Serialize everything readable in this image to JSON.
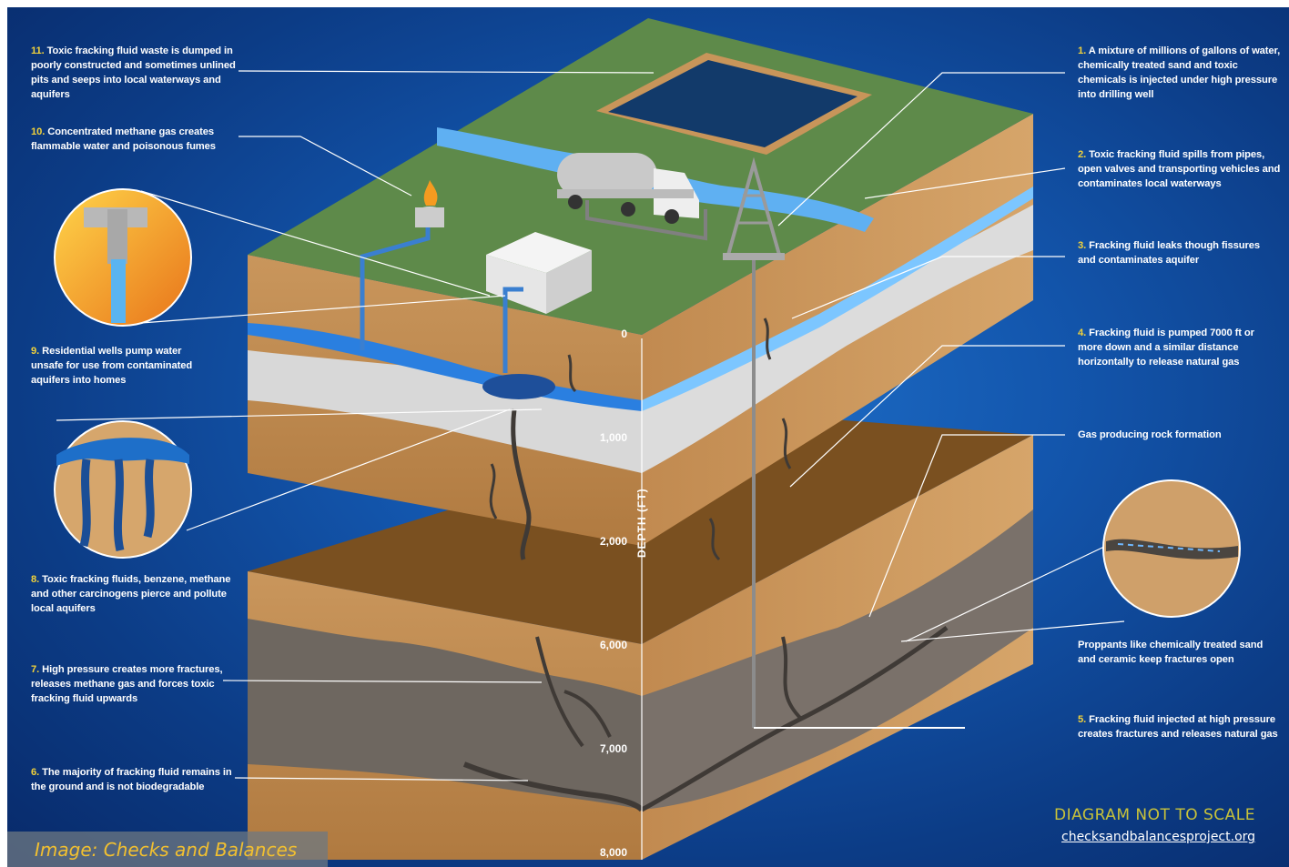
{
  "labels": {
    "l11": {
      "num": "11.",
      "text": "Toxic fracking fluid waste is dumped in poorly constructed and sometimes unlined pits and seeps into local waterways and aquifers"
    },
    "l10": {
      "num": "10.",
      "text": "Concentrated methane gas creates flammable water and poisonous fumes"
    },
    "l9": {
      "num": "9.",
      "text": "Residential wells pump water unsafe for use from contaminated aquifers into homes"
    },
    "l8": {
      "num": "8.",
      "text": "Toxic fracking fluids, benzene, methane and other carcinogens pierce and pollute local aquifers"
    },
    "l7": {
      "num": "7.",
      "text": "High pressure creates more fractures, releases methane gas and forces toxic fracking fluid upwards"
    },
    "l6": {
      "num": "6.",
      "text": "The majority of fracking fluid remains in the ground and is not biodegradable"
    },
    "l1": {
      "num": "1.",
      "text": "A mixture of millions of gallons of water, chemically treated sand and toxic chemicals is injected under high pressure into drilling well"
    },
    "l2": {
      "num": "2.",
      "text": "Toxic fracking fluid spills from pipes, open valves and transporting vehicles and contaminates local waterways"
    },
    "l3": {
      "num": "3.",
      "text": "Fracking fluid leaks though fissures and contaminates aquifer"
    },
    "l4": {
      "num": "4.",
      "text": "Fracking fluid is pumped 7000 ft or more down and a similar distance horizontally to release natural gas"
    },
    "gas": {
      "num": "",
      "text": "Gas producing rock formation"
    },
    "proppants": {
      "num": "",
      "text": "Proppants like chemically treated sand and ceramic keep fractures open"
    },
    "l5": {
      "num": "5.",
      "text": "Fracking fluid injected at high pressure creates fractures and releases natural gas"
    }
  },
  "depth_axis": {
    "title": "DEPTH (FT)",
    "ticks": [
      "0",
      "1,000",
      "2,000",
      "6,000",
      "7,000",
      "8,000"
    ]
  },
  "footer": {
    "not_to_scale": "DIAGRAM NOT TO SCALE",
    "website": "checksandbalancesproject.org",
    "credit": "Image: Checks and Balances"
  },
  "colors": {
    "background": "#1356ad",
    "grass": "#5e8a4a",
    "soil": "#c8955a",
    "water": "#2a7fe0",
    "shale": "#6e6760",
    "number_accent": "#f2d23a"
  }
}
